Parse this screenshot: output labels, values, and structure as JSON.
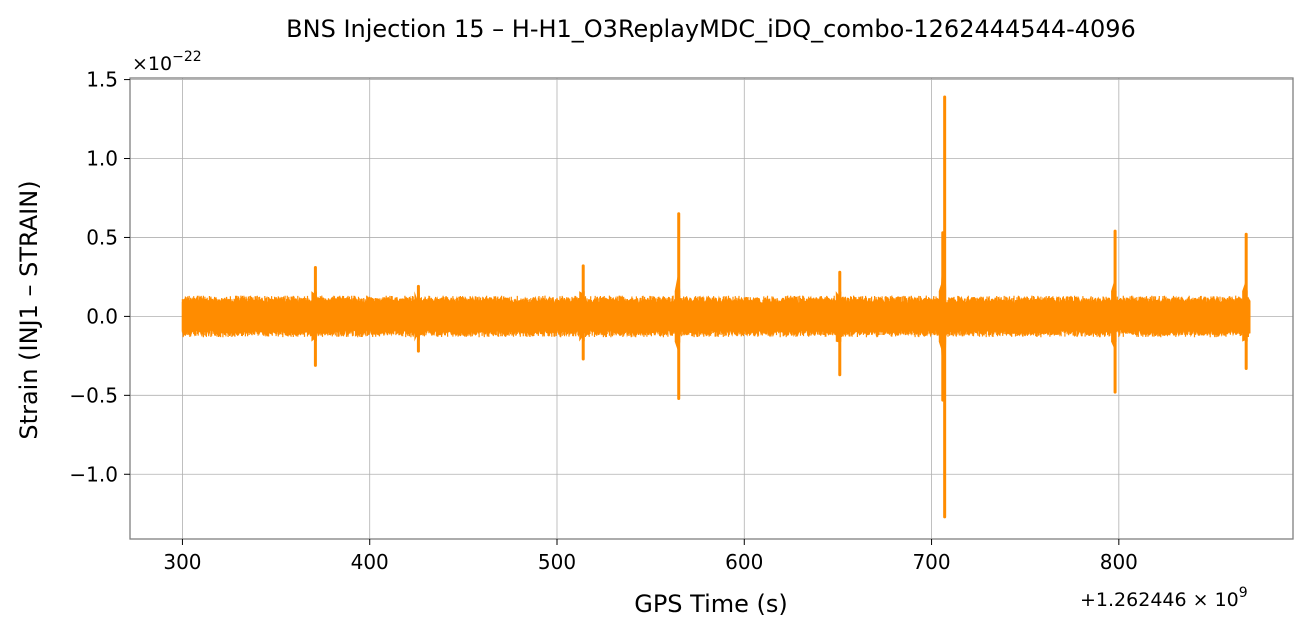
{
  "chart_data": {
    "type": "line",
    "title": "BNS Injection 15 – H-H1_O3ReplayMDC_iDQ_combo-1262444544-4096",
    "xlabel": "GPS Time (s)",
    "ylabel": "Strain (INJ1 – STRAIN)",
    "x_offset_label": "+1.262446 × 10",
    "x_offset_exponent": "9",
    "y_scale_label": "×10",
    "y_scale_exponent": "−22",
    "xlim": [
      272,
      893
    ],
    "ylim": [
      -1.41,
      1.51
    ],
    "xticks": [
      300,
      400,
      500,
      600,
      700,
      800
    ],
    "xtick_labels": [
      "300",
      "400",
      "500",
      "600",
      "700",
      "800"
    ],
    "yticks": [
      -1.0,
      -0.5,
      0.0,
      0.5,
      1.0,
      1.5
    ],
    "ytick_labels": [
      "−1.0",
      "−0.5",
      "0.0",
      "0.5",
      "1.0",
      "1.5"
    ],
    "grid": true,
    "series": [
      {
        "color": "#ff8c00",
        "x_range": [
          300,
          870
        ],
        "noise_band": {
          "upper": 0.12,
          "lower": -0.12
        },
        "transients": [
          {
            "x": 371,
            "max": 0.31,
            "min": -0.31
          },
          {
            "x": 426,
            "max": 0.19,
            "min": -0.22
          },
          {
            "x": 514,
            "max": 0.32,
            "min": -0.27
          },
          {
            "x": 565,
            "max": 0.65,
            "min": -0.52
          },
          {
            "x": 651,
            "max": 0.28,
            "min": -0.37
          },
          {
            "x": 706,
            "max": 0.53,
            "min": -0.53
          },
          {
            "x": 707,
            "max": 1.39,
            "min": -1.27
          },
          {
            "x": 798,
            "max": 0.54,
            "min": -0.48
          },
          {
            "x": 868,
            "max": 0.52,
            "min": -0.33
          }
        ]
      }
    ]
  }
}
